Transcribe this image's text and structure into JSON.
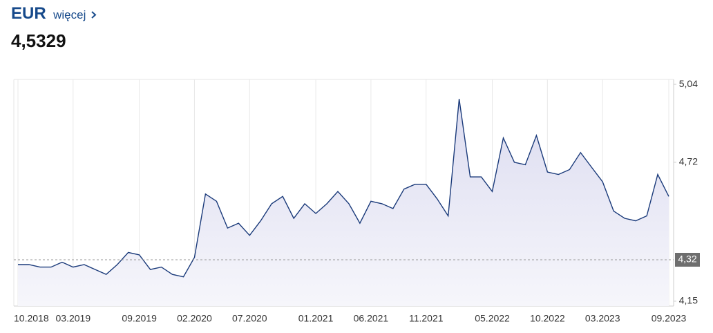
{
  "header": {
    "title": "EUR",
    "link": "więcej",
    "value": "4,5329"
  },
  "chart_data": {
    "type": "line",
    "color": "#1a3a7a",
    "grid": "x",
    "categories": [
      "10.2018",
      null,
      null,
      null,
      null,
      "03.2019",
      null,
      null,
      null,
      null,
      null,
      "09.2019",
      null,
      null,
      null,
      null,
      "02.2020",
      null,
      null,
      null,
      null,
      "07.2020",
      null,
      null,
      null,
      null,
      null,
      "01.2021",
      null,
      null,
      null,
      null,
      "06.2021",
      null,
      null,
      null,
      null,
      "11.2021",
      null,
      null,
      null,
      null,
      null,
      "05.2022",
      null,
      null,
      null,
      null,
      "10.2022",
      null,
      null,
      null,
      null,
      "03.2023",
      null,
      null,
      null,
      null,
      null,
      "09.2023"
    ],
    "values": [
      4.3,
      4.3,
      4.29,
      4.29,
      4.31,
      4.29,
      4.3,
      4.28,
      4.26,
      4.3,
      4.35,
      4.34,
      4.28,
      4.29,
      4.26,
      4.25,
      4.33,
      4.59,
      4.56,
      4.45,
      4.47,
      4.42,
      4.48,
      4.55,
      4.58,
      4.49,
      4.55,
      4.51,
      4.55,
      4.6,
      4.55,
      4.47,
      4.56,
      4.55,
      4.53,
      4.61,
      4.63,
      4.63,
      4.57,
      4.5,
      4.98,
      4.66,
      4.66,
      4.6,
      4.82,
      4.72,
      4.71,
      4.83,
      4.68,
      4.67,
      4.69,
      4.76,
      4.7,
      4.64,
      4.52,
      4.49,
      4.48,
      4.5,
      4.67,
      4.58
    ],
    "ylim": [
      4.13,
      5.06
    ],
    "yticks": [
      {
        "value": 4.15,
        "label": "4,15"
      },
      {
        "value": 4.72,
        "label": "4,72"
      },
      {
        "value": 5.04,
        "label": "5,04"
      }
    ],
    "reference": {
      "value": 4.32,
      "label": "4,32"
    }
  }
}
